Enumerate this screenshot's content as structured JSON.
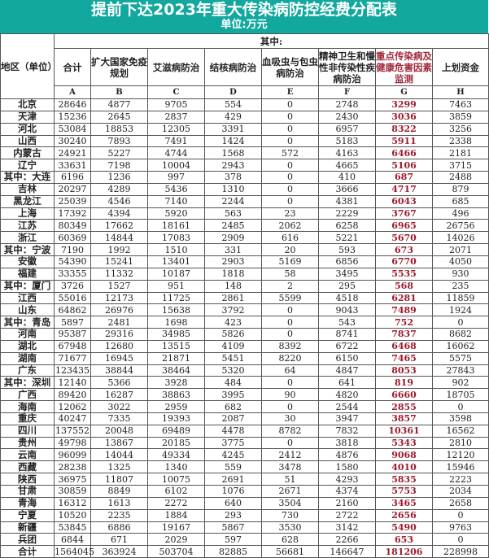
{
  "title": "提前下达2023年重大传染病防控经费分配表",
  "unit": "单位:万元",
  "header": {
    "region": "地区（单位）",
    "among": "其中:",
    "columns": [
      "合计",
      "扩大国家免疫规划",
      "艾滋病防治",
      "结核病防治",
      "血吸虫与包虫病防治",
      "精神卫生和慢性非传染性疾病防治",
      "重点传染病及健康危害因素监测",
      "上划资金"
    ],
    "letters": [
      "A",
      "B",
      "C",
      "D",
      "E",
      "F",
      "G",
      "H"
    ]
  },
  "colors": {
    "banner": "#13a89e",
    "highlight": "#9b1b2c"
  },
  "rows": [
    [
      "北京",
      "28646",
      "4877",
      "9705",
      "554",
      "0",
      "2748",
      "3299",
      "7463"
    ],
    [
      "天津",
      "15236",
      "2645",
      "2837",
      "429",
      "0",
      "2430",
      "3036",
      "3859"
    ],
    [
      "河北",
      "53084",
      "18853",
      "12305",
      "3391",
      "0",
      "6957",
      "8322",
      "3256"
    ],
    [
      "山西",
      "30240",
      "7893",
      "7491",
      "1424",
      "0",
      "5183",
      "5911",
      "2338"
    ],
    [
      "内蒙古",
      "24921",
      "5227",
      "4744",
      "1568",
      "572",
      "4163",
      "6466",
      "2181"
    ],
    [
      "辽宁",
      "33631",
      "7198",
      "10004",
      "2943",
      "0",
      "4665",
      "5106",
      "3715"
    ],
    [
      "其中：大连",
      "6196",
      "1236",
      "997",
      "378",
      "0",
      "410",
      "687",
      "2488"
    ],
    [
      "吉林",
      "20297",
      "4289",
      "5436",
      "1310",
      "0",
      "3666",
      "4717",
      "879"
    ],
    [
      "黑龙江",
      "25039",
      "4546",
      "7140",
      "2244",
      "0",
      "4381",
      "6043",
      "685"
    ],
    [
      "上海",
      "17392",
      "4394",
      "5920",
      "563",
      "23",
      "2229",
      "3767",
      "496"
    ],
    [
      "江苏",
      "80349",
      "17662",
      "18161",
      "2485",
      "2062",
      "6258",
      "6965",
      "26756"
    ],
    [
      "浙江",
      "60369",
      "14844",
      "17083",
      "2909",
      "616",
      "5221",
      "5670",
      "14026"
    ],
    [
      "其中：宁波",
      "7190",
      "1992",
      "1510",
      "331",
      "20",
      "593",
      "673",
      "2071"
    ],
    [
      "安徽",
      "54390",
      "15241",
      "13401",
      "2903",
      "5169",
      "6856",
      "6770",
      "4050"
    ],
    [
      "福建",
      "33355",
      "11332",
      "10187",
      "1818",
      "58",
      "3495",
      "5535",
      "930"
    ],
    [
      "其中：厦门",
      "3726",
      "1527",
      "951",
      "148",
      "2",
      "295",
      "568",
      "235"
    ],
    [
      "江西",
      "55016",
      "12173",
      "11725",
      "2861",
      "5599",
      "4518",
      "6281",
      "11859"
    ],
    [
      "山东",
      "64862",
      "26976",
      "15638",
      "3792",
      "0",
      "9043",
      "7489",
      "1924"
    ],
    [
      "其中：青岛",
      "5897",
      "2481",
      "1698",
      "423",
      "0",
      "543",
      "752",
      "0"
    ],
    [
      "河南",
      "95387",
      "29316",
      "34985",
      "5826",
      "0",
      "8741",
      "7837",
      "8682"
    ],
    [
      "湖北",
      "67948",
      "12680",
      "13515",
      "4109",
      "8392",
      "6722",
      "6468",
      "16062"
    ],
    [
      "湖南",
      "71677",
      "16945",
      "21871",
      "5451",
      "8220",
      "6150",
      "7465",
      "5575"
    ],
    [
      "广东",
      "123435",
      "38844",
      "38464",
      "5320",
      "64",
      "4847",
      "8053",
      "27843"
    ],
    [
      "其中：深圳",
      "12140",
      "5366",
      "3928",
      "484",
      "0",
      "641",
      "819",
      "902"
    ],
    [
      "广西",
      "89420",
      "16287",
      "38863",
      "3995",
      "90",
      "4820",
      "6660",
      "18705"
    ],
    [
      "海南",
      "12062",
      "3022",
      "2959",
      "682",
      "0",
      "2544",
      "2855",
      "0"
    ],
    [
      "重庆",
      "40247",
      "7335",
      "19393",
      "2087",
      "30",
      "3947",
      "3857",
      "3598"
    ],
    [
      "四川",
      "137552",
      "20048",
      "69489",
      "4478",
      "8782",
      "7832",
      "10361",
      "16562"
    ],
    [
      "贵州",
      "49798",
      "13867",
      "20185",
      "3775",
      "0",
      "3818",
      "5343",
      "2810"
    ],
    [
      "云南",
      "96099",
      "14044",
      "49334",
      "4245",
      "2412",
      "4876",
      "9068",
      "12120"
    ],
    [
      "西藏",
      "28238",
      "1325",
      "1340",
      "559",
      "3478",
      "1580",
      "4010",
      "15946"
    ],
    [
      "陕西",
      "36975",
      "11807",
      "10075",
      "2691",
      "51",
      "4293",
      "5835",
      "2223"
    ],
    [
      "甘肃",
      "30859",
      "8849",
      "6102",
      "1076",
      "2671",
      "4374",
      "5753",
      "2034"
    ],
    [
      "青海",
      "16312",
      "1613",
      "2272",
      "640",
      "3504",
      "2160",
      "3465",
      "2658"
    ],
    [
      "宁夏",
      "10520",
      "2235",
      "1884",
      "293",
      "730",
      "2722",
      "2656",
      "0"
    ],
    [
      "新疆",
      "53845",
      "6886",
      "19167",
      "5867",
      "3530",
      "3142",
      "5490",
      "9763"
    ],
    [
      "兵团",
      "6844",
      "671",
      "2029",
      "597",
      "628",
      "2266",
      "653",
      "0"
    ],
    [
      "合计",
      "1564045",
      "363924",
      "503704",
      "82885",
      "56681",
      "146647",
      "181206",
      "228998"
    ]
  ]
}
